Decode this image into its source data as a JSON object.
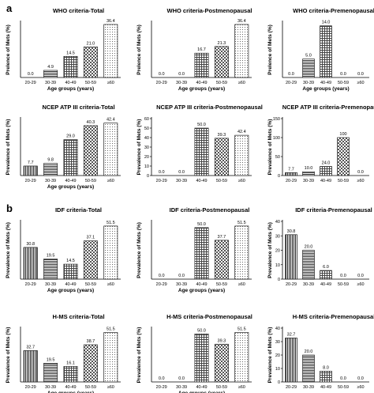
{
  "panel_labels": [
    "a",
    "b"
  ],
  "categories": [
    "20-29",
    "30-39",
    "40-49",
    "50-59",
    "≥60"
  ],
  "patterns": [
    "vstripe",
    "hstripe",
    "grid",
    "check",
    "dots"
  ],
  "chart_data": [
    {
      "type": "bar",
      "title": "WHO criteria-Total",
      "ylabel": "Prelence of Mets (%)",
      "xlabel": "Age groups (years)",
      "categories": [
        "20-29",
        "30-39",
        "40-49",
        "50-59",
        "≥60"
      ],
      "values": [
        0.0,
        4.9,
        14.5,
        21.0,
        36.4
      ],
      "labels": [
        "0.0",
        "4.9",
        "14.5",
        "21.0",
        "36.4"
      ],
      "ymax": 38
    },
    {
      "type": "bar",
      "title": "WHO criteria-Postmenopausal",
      "ylabel": "Prelence of Mets (%)",
      "xlabel": "Age groups (years)",
      "categories": [
        "20-29",
        "30-39",
        "40-49",
        "50-59",
        "≥60"
      ],
      "values": [
        0.0,
        0.0,
        16.7,
        21.3,
        36.4
      ],
      "labels": [
        "0.0",
        "0.0",
        "16.7",
        "21.3",
        "36.4"
      ],
      "ymax": 38
    },
    {
      "type": "bar",
      "title": "WHO criteria-Premenopausal",
      "ylabel": "Prelence of Mets (%)",
      "xlabel": "Age groups (years)",
      "categories": [
        "20-29",
        "30-39",
        "40-49",
        "50-59",
        "≥60"
      ],
      "values": [
        0.0,
        5.0,
        14.0,
        0.0,
        0.0
      ],
      "labels": [
        "0.0",
        "5.0",
        "14.0",
        "0.0",
        "0.0"
      ],
      "ymax": 15
    },
    {
      "type": "bar",
      "title": "NCEP ATP III criteria-Total",
      "ylabel": "Prevalence of Mets (%)",
      "xlabel": "Age groups (years)",
      "categories": [
        "20-29",
        "30-39",
        "40-49",
        "50-59",
        "≥60"
      ],
      "values": [
        7.7,
        9.8,
        29.0,
        40.3,
        42.4
      ],
      "labels": [
        "7.7",
        "9.8",
        "29.0",
        "40.3",
        "42.4"
      ],
      "ymax": 46
    },
    {
      "type": "bar",
      "title": "NCEP ATP III criteria-Postmenopausal",
      "ylabel": "Prevalence of Mets (%)",
      "xlabel": "",
      "categories": [
        "20-29",
        "30-39",
        "40-49",
        "50-59",
        "≥60"
      ],
      "values": [
        0.0,
        0.0,
        50.0,
        39.3,
        42.4
      ],
      "labels": [
        "0.0",
        "0.0",
        "50.0",
        "39.3",
        "42.4"
      ],
      "ymax": 60,
      "yticks": [
        "0",
        "10",
        "20",
        "30",
        "40",
        "50",
        "60"
      ]
    },
    {
      "type": "bar",
      "title": "NCEP ATP III criteria-Premenopausal",
      "ylabel": "Prevalence of Mets (%)",
      "xlabel": "",
      "categories": [
        "20-29",
        "30-39",
        "40-49",
        "50-59",
        "≥60"
      ],
      "values": [
        7.7,
        10.0,
        24.0,
        100,
        0.0
      ],
      "labels": [
        "7.7",
        "10.0",
        "24.0",
        "100",
        "0.0"
      ],
      "ymax": 150,
      "yticks": [
        "0",
        "50",
        "100",
        "150"
      ]
    },
    {
      "type": "bar",
      "title": "IDF criteria-Total",
      "ylabel": "Prevalence of Mets (%)",
      "xlabel": "Age groups (years)",
      "categories": [
        "20-29",
        "30-39",
        "40-49",
        "50-59",
        "≥60"
      ],
      "values": [
        30.8,
        19.5,
        14.5,
        37.1,
        51.5
      ],
      "labels": [
        "30.8",
        "19.5",
        "14.5",
        "37.1",
        "51.5"
      ],
      "ymax": 56
    },
    {
      "type": "bar",
      "title": "IDF criteria-Postmenopausal",
      "ylabel": "Prevalence of Mets (%)",
      "xlabel": "Age groups (years)",
      "categories": [
        "20-29",
        "30-39",
        "40-49",
        "50-59",
        "≥60"
      ],
      "values": [
        0.0,
        0.0,
        50.0,
        37.7,
        51.5
      ],
      "labels": [
        "0.0",
        "0.0",
        "50.0",
        "37.7",
        "51.5"
      ],
      "ymax": 56
    },
    {
      "type": "bar",
      "title": "IDF criteria-Premenopausal",
      "ylabel": "Prevalence of Mets (%)",
      "xlabel": "",
      "categories": [
        "20-29",
        "30-39",
        "40-49",
        "50-59",
        "≥60"
      ],
      "values": [
        30.8,
        20.0,
        6.0,
        0.0,
        0.0
      ],
      "labels": [
        "30.8",
        "20.0",
        "6.0",
        "0.0",
        "0.0"
      ],
      "ymax": 40,
      "yticks": [
        "0",
        "10",
        "20",
        "30",
        "40"
      ]
    },
    {
      "type": "bar",
      "title": "H-MS criteria-Total",
      "ylabel": "Prevalence of Mets (%)",
      "xlabel": "Age groups (years)",
      "categories": [
        "20-29",
        "30-39",
        "40-49",
        "50-59",
        "≥60"
      ],
      "values": [
        32.7,
        19.5,
        16.1,
        38.7,
        51.5
      ],
      "labels": [
        "32.7",
        "19.5",
        "16.1",
        "38.7",
        "51.5"
      ],
      "ymax": 56
    },
    {
      "type": "bar",
      "title": "H-MS criteria-Postmenopausal",
      "ylabel": "Prevalence of Mets (%)",
      "xlabel": "Age groups (years)",
      "categories": [
        "20-29",
        "30-39",
        "40-49",
        "50-59",
        "≥60"
      ],
      "values": [
        0.0,
        0.0,
        50.0,
        39.3,
        51.5
      ],
      "labels": [
        "0.0",
        "0.0",
        "50.0",
        "39.3",
        "51.5"
      ],
      "ymax": 56
    },
    {
      "type": "bar",
      "title": "H-MS criteria-Premenopausal",
      "ylabel": "Prevalence of Mets (%)",
      "xlabel": "",
      "categories": [
        "20-29",
        "30-39",
        "40-49",
        "50-59",
        "≥60"
      ],
      "values": [
        32.7,
        20.0,
        8.0,
        0.0,
        0.0
      ],
      "labels": [
        "32.7",
        "20.0",
        "8.0",
        "0.0",
        "0.0"
      ],
      "ymax": 40,
      "yticks": [
        "0",
        "10",
        "20",
        "30",
        "40"
      ]
    }
  ]
}
